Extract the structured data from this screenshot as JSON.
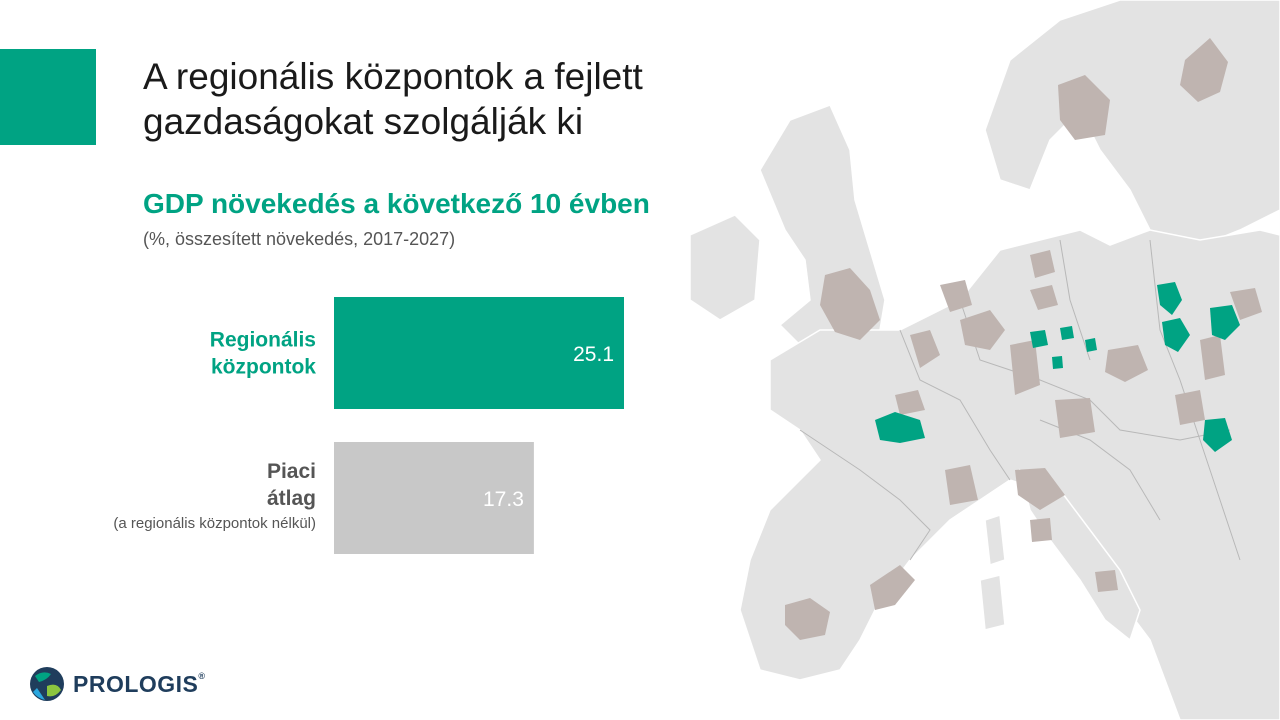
{
  "header": {
    "title": "A regionális központok a fejlett gazdaságokat szolgálják ki",
    "subtitle": "GDP növekedés a következő 10 évben",
    "subnote": "(%, összesített növekedés, 2017-2027)"
  },
  "colors": {
    "accent": "#00a383",
    "gray_bar": "#c8c8c8",
    "map_land": "#e3e3e3",
    "map_region_gray": "#bfb4b0",
    "map_region_teal": "#00a383",
    "dark_label": "#555555"
  },
  "chart_data": {
    "type": "bar",
    "orientation": "horizontal",
    "title": "GDP növekedés a következő 10 évben",
    "subtitle": "(%, összesített növekedés, 2017-2027)",
    "categories": [
      {
        "lines": [
          "Regionális",
          "központok"
        ],
        "note": "",
        "value": 25.1,
        "value_label": "25.1",
        "color": "#00a383"
      },
      {
        "lines": [
          "Piaci",
          "átlag"
        ],
        "note": "(a regionális központok nélkül)",
        "value": 17.3,
        "value_label": "17.3",
        "color": "#c8c8c8"
      }
    ],
    "xlim": [
      0,
      28
    ],
    "grid": false,
    "legend": "none"
  },
  "logo": {
    "name": "PROLOGIS",
    "mark": "®",
    "icon": "globe-icon"
  }
}
